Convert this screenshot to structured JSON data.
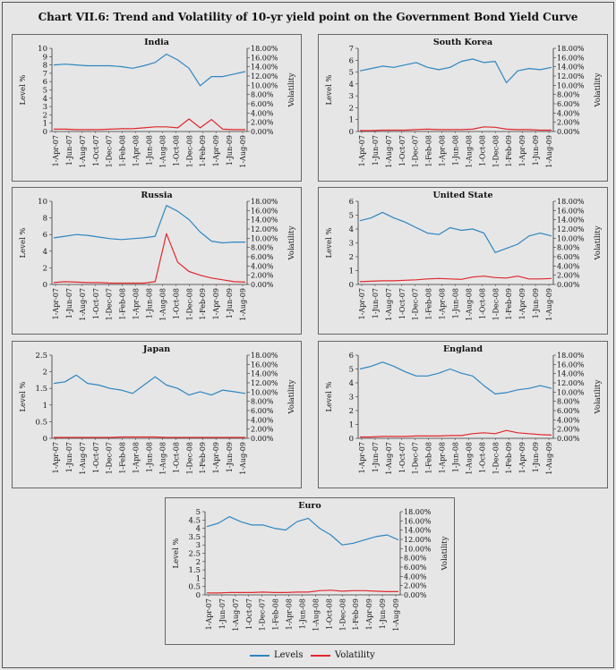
{
  "title": "Chart VII.6: Trend and Volatility of 10-yr yield point on the Government Bond Yield Curve",
  "legend": [
    {
      "label": "Levels",
      "color": "#2e86c1"
    },
    {
      "label": "Volatility",
      "color": "#e0282e"
    }
  ],
  "chart_data": [
    {
      "type": "line",
      "title": "India",
      "ylabel": "Level %",
      "y2label": "Volatility",
      "ylim": [
        0,
        10
      ],
      "yticks": [
        "0",
        "1",
        "2",
        "3",
        "4",
        "5",
        "6",
        "7",
        "8",
        "9",
        "10"
      ],
      "y2lim": [
        0,
        18
      ],
      "y2ticks": [
        "0.00%",
        "2.00%",
        "4.00%",
        "6.00%",
        "8.00%",
        "10.00%",
        "12.00%",
        "14.00%",
        "16.00%",
        "18.00%"
      ],
      "xticks": [
        "1-Apr-07",
        "1-Jun-07",
        "1-Aug-07",
        "1-Oct-07",
        "1-Dec-07",
        "1-Feb-08",
        "1-Apr-08",
        "1-Jun-08",
        "1-Aug-08",
        "1-Oct-08",
        "1-Dec-08",
        "1-Feb-09",
        "1-Apr-09",
        "1-Jun-09",
        "1-Aug-09"
      ],
      "series": [
        {
          "name": "Levels",
          "axis": "left",
          "values": [
            8.0,
            8.1,
            8.0,
            7.9,
            7.9,
            7.9,
            7.8,
            7.6,
            7.9,
            8.3,
            9.3,
            8.6,
            7.6,
            5.5,
            6.6,
            6.6,
            6.9,
            7.2
          ]
        },
        {
          "name": "Volatility",
          "axis": "right",
          "values": [
            0.5,
            0.5,
            0.4,
            0.4,
            0.4,
            0.5,
            0.6,
            0.6,
            0.8,
            1.0,
            1.0,
            0.8,
            2.7,
            0.8,
            2.6,
            0.5,
            0.4,
            0.4
          ]
        }
      ]
    },
    {
      "type": "line",
      "title": "South Korea",
      "ylabel": "Level %",
      "y2label": "Volatility",
      "ylim": [
        0,
        7
      ],
      "yticks": [
        "0",
        "1",
        "2",
        "3",
        "4",
        "5",
        "6",
        "7"
      ],
      "y2lim": [
        0,
        18
      ],
      "y2ticks": [
        "0.00%",
        "2.00%",
        "4.00%",
        "6.00%",
        "8.00%",
        "10.00%",
        "12.00%",
        "14.00%",
        "16.00%",
        "18.00%"
      ],
      "xticks": [
        "1-Apr-07",
        "1-Jun-07",
        "1-Aug-07",
        "1-Oct-07",
        "1-Dec-07",
        "1-Feb-08",
        "1-Apr-08",
        "1-Jun-08",
        "1-Aug-08",
        "1-Oct-08",
        "1-Dec-08",
        "1-Feb-09",
        "1-Apr-09",
        "1-Jun-09",
        "1-Aug-09"
      ],
      "series": [
        {
          "name": "Levels",
          "axis": "left",
          "values": [
            5.1,
            5.3,
            5.5,
            5.4,
            5.6,
            5.8,
            5.4,
            5.2,
            5.4,
            5.9,
            6.1,
            5.8,
            5.9,
            4.1,
            5.1,
            5.3,
            5.2,
            5.4
          ]
        },
        {
          "name": "Volatility",
          "axis": "right",
          "values": [
            0.2,
            0.2,
            0.3,
            0.3,
            0.3,
            0.4,
            0.5,
            0.4,
            0.4,
            0.4,
            0.5,
            1.0,
            0.9,
            0.5,
            0.4,
            0.4,
            0.3,
            0.3
          ]
        }
      ]
    },
    {
      "type": "line",
      "title": "Russia",
      "ylabel": "Level %",
      "y2label": "Volatility",
      "ylim": [
        0,
        10
      ],
      "yticks": [
        "0",
        "2",
        "4",
        "6",
        "8",
        "10"
      ],
      "y2lim": [
        0,
        18
      ],
      "y2ticks": [
        "0.00%",
        "2.00%",
        "4.00%",
        "6.00%",
        "8.00%",
        "10.00%",
        "12.00%",
        "14.00%",
        "16.00%",
        "18.00%"
      ],
      "xticks": [
        "1-Apr-07",
        "1-Jun-07",
        "1-Aug-07",
        "1-Oct-07",
        "1-Dec-07",
        "1-Feb-08",
        "1-Apr-08",
        "1-Jun-08",
        "1-Aug-08",
        "1-Oct-08",
        "1-Dec-08",
        "1-Feb-09",
        "1-Apr-09",
        "1-Jun-09",
        "1-Aug-09"
      ],
      "series": [
        {
          "name": "Levels",
          "axis": "left",
          "values": [
            5.6,
            5.8,
            6.0,
            5.9,
            5.7,
            5.5,
            5.4,
            5.5,
            5.6,
            5.8,
            9.5,
            8.8,
            7.8,
            6.3,
            5.2,
            5.0,
            5.1,
            5.1
          ]
        },
        {
          "name": "Volatility",
          "axis": "right",
          "values": [
            0.4,
            0.6,
            0.5,
            0.4,
            0.4,
            0.3,
            0.3,
            0.3,
            0.3,
            0.6,
            11.0,
            4.8,
            2.8,
            2.0,
            1.4,
            1.0,
            0.6,
            0.5
          ]
        }
      ]
    },
    {
      "type": "line",
      "title": "United State",
      "ylabel": "Level %",
      "y2label": "Volatility",
      "ylim": [
        0,
        6
      ],
      "yticks": [
        "0",
        "1",
        "2",
        "3",
        "4",
        "5",
        "6"
      ],
      "y2lim": [
        0,
        18
      ],
      "y2ticks": [
        "0.00%",
        "2.00%",
        "4.00%",
        "6.00%",
        "8.00%",
        "10.00%",
        "12.00%",
        "14.00%",
        "16.00%",
        "18.00%"
      ],
      "xticks": [
        "1-Apr-07",
        "1-Jun-07",
        "1-Aug-07",
        "1-Oct-07",
        "1-Dec-07",
        "1-Feb-08",
        "1-Apr-08",
        "1-Jun-08",
        "1-Aug-08",
        "1-Oct-08",
        "1-Dec-08",
        "1-Feb-09",
        "1-Apr-09",
        "1-Jun-09",
        "1-Aug-09"
      ],
      "series": [
        {
          "name": "Levels",
          "axis": "left",
          "values": [
            4.6,
            4.8,
            5.2,
            4.8,
            4.5,
            4.1,
            3.7,
            3.6,
            4.1,
            3.9,
            4.0,
            3.7,
            2.3,
            2.6,
            2.9,
            3.5,
            3.7,
            3.5
          ]
        },
        {
          "name": "Volatility",
          "axis": "right",
          "values": [
            0.6,
            0.7,
            0.8,
            0.8,
            0.9,
            1.0,
            1.2,
            1.3,
            1.2,
            1.1,
            1.6,
            1.8,
            1.5,
            1.4,
            1.8,
            1.2,
            1.2,
            1.3
          ]
        }
      ]
    },
    {
      "type": "line",
      "title": "Japan",
      "ylabel": "Level %",
      "y2label": "Volatility",
      "ylim": [
        0,
        2.5
      ],
      "yticks": [
        "0",
        "0.5",
        "1",
        "1.5",
        "2",
        "2.5"
      ],
      "y2lim": [
        0,
        18
      ],
      "y2ticks": [
        "0.00%",
        "2.00%",
        "4.00%",
        "6.00%",
        "8.00%",
        "10.00%",
        "12.00%",
        "14.00%",
        "16.00%",
        "18.00%"
      ],
      "xticks": [
        "1-Apr-07",
        "1-Jun-07",
        "1-Aug-07",
        "1-Oct-07",
        "1-Dec-07",
        "1-Feb-08",
        "1-Apr-08",
        "1-Jun-08",
        "1-Aug-08",
        "1-Oct-08",
        "1-Dec-08",
        "1-Feb-09",
        "1-Apr-09",
        "1-Jun-09",
        "1-Aug-09"
      ],
      "series": [
        {
          "name": "Levels",
          "axis": "left",
          "values": [
            1.65,
            1.7,
            1.9,
            1.65,
            1.6,
            1.5,
            1.45,
            1.35,
            1.6,
            1.85,
            1.6,
            1.5,
            1.3,
            1.4,
            1.3,
            1.45,
            1.4,
            1.35
          ]
        },
        {
          "name": "Volatility",
          "axis": "right",
          "values": [
            0.2,
            0.2,
            0.2,
            0.2,
            0.2,
            0.2,
            0.3,
            0.3,
            0.3,
            0.3,
            0.2,
            0.2,
            0.2,
            0.2,
            0.2,
            0.2,
            0.2,
            0.2
          ]
        }
      ]
    },
    {
      "type": "line",
      "title": "England",
      "ylabel": "Level %",
      "y2label": "Volatility",
      "ylim": [
        0,
        6
      ],
      "yticks": [
        "0",
        "1",
        "2",
        "3",
        "4",
        "5",
        "6"
      ],
      "y2lim": [
        0,
        18
      ],
      "y2ticks": [
        "0.00%",
        "2.00%",
        "4.00%",
        "6.00%",
        "8.00%",
        "10.00%",
        "12.00%",
        "14.00%",
        "16.00%",
        "18.00%"
      ],
      "xticks": [
        "1-Apr-07",
        "1-Jun-07",
        "1-Aug-07",
        "1-Oct-07",
        "1-Dec-07",
        "1-Feb-08",
        "1-Apr-08",
        "1-Jun-08",
        "1-Aug-08",
        "1-Oct-08",
        "1-Dec-08",
        "1-Feb-09",
        "1-Apr-09",
        "1-Jun-09",
        "1-Aug-09"
      ],
      "series": [
        {
          "name": "Levels",
          "axis": "left",
          "values": [
            5.0,
            5.2,
            5.5,
            5.2,
            4.8,
            4.5,
            4.5,
            4.7,
            5.0,
            4.7,
            4.5,
            3.8,
            3.2,
            3.3,
            3.5,
            3.6,
            3.8,
            3.6
          ]
        },
        {
          "name": "Volatility",
          "axis": "right",
          "values": [
            0.3,
            0.3,
            0.4,
            0.4,
            0.4,
            0.5,
            0.5,
            0.5,
            0.6,
            0.6,
            1.0,
            1.2,
            1.0,
            1.7,
            1.2,
            1.0,
            0.8,
            0.7
          ]
        }
      ]
    },
    {
      "type": "line",
      "title": "Euro",
      "ylabel": "Level %",
      "y2label": "Volatility",
      "ylim": [
        0,
        5
      ],
      "yticks": [
        "0",
        "0.5",
        "1",
        "1.5",
        "2",
        "2.5",
        "3",
        "3.5",
        "4",
        "4.5",
        "5"
      ],
      "y2lim": [
        0,
        18
      ],
      "y2ticks": [
        "0.00%",
        "2.00%",
        "4.00%",
        "6.00%",
        "8.00%",
        "10.00%",
        "12.00%",
        "14.00%",
        "16.00%",
        "18.00%"
      ],
      "xticks": [
        "1-Apr-07",
        "1-Jun-07",
        "1-Aug-07",
        "1-Oct-07",
        "1-Dec-07",
        "1-Feb-08",
        "1-Apr-08",
        "1-Jun-08",
        "1-Aug-08",
        "1-Oct-08",
        "1-Dec-08",
        "1-Feb-09",
        "1-Apr-09",
        "1-Jun-09",
        "1-Aug-09"
      ],
      "series": [
        {
          "name": "Levels",
          "axis": "left",
          "values": [
            4.1,
            4.3,
            4.7,
            4.4,
            4.2,
            4.2,
            4.0,
            3.9,
            4.4,
            4.6,
            4.0,
            3.6,
            3.0,
            3.1,
            3.3,
            3.5,
            3.6,
            3.3
          ]
        },
        {
          "name": "Volatility",
          "axis": "right",
          "values": [
            0.4,
            0.4,
            0.5,
            0.5,
            0.5,
            0.6,
            0.5,
            0.5,
            0.6,
            0.6,
            0.9,
            1.0,
            0.8,
            0.9,
            0.9,
            0.8,
            0.7,
            0.7
          ]
        }
      ]
    }
  ]
}
